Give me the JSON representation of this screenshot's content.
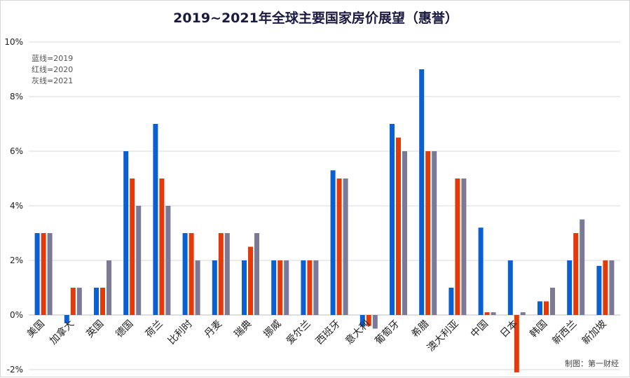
{
  "chart_data": {
    "type": "bar",
    "title": "2019~2021年全球主要国家房价展望（惠誉）",
    "categories": [
      "美国",
      "加拿大",
      "英国",
      "德国",
      "荷兰",
      "比利时",
      "丹麦",
      "瑞典",
      "挪威",
      "爱尔兰",
      "西班牙",
      "意大利",
      "葡萄牙",
      "希腊",
      "澳大利亚",
      "中国",
      "日本",
      "韩国",
      "新西兰",
      "新加坡"
    ],
    "series": [
      {
        "name": "2019",
        "color": "#0a5fd1",
        "values": [
          3,
          -0.3,
          1,
          6,
          7,
          3,
          2,
          2,
          2,
          2,
          5.3,
          -0.4,
          7,
          9,
          1,
          3.2,
          2,
          0.5,
          2,
          1.8
        ]
      },
      {
        "name": "2020",
        "color": "#e23a0a",
        "values": [
          3,
          1,
          1,
          5,
          5,
          3,
          3,
          2.5,
          2,
          2,
          5,
          -0.4,
          6.5,
          6,
          5,
          0.1,
          -2.1,
          0.5,
          3,
          2
        ]
      },
      {
        "name": "2021",
        "color": "#7a7a96",
        "values": [
          3,
          1,
          2,
          4,
          4,
          2,
          3,
          3,
          2,
          2,
          5,
          -0.5,
          6,
          6,
          5,
          0.1,
          0.1,
          1,
          3.5,
          2
        ]
      }
    ],
    "ylim": [
      -2,
      10
    ],
    "yticks": [
      -2,
      0,
      2,
      4,
      6,
      8,
      10
    ],
    "ytick_labels": [
      "-2%",
      "0%",
      "2%",
      "4%",
      "6%",
      "8%",
      "10%"
    ],
    "grid": true,
    "legend_note": [
      "蓝线=2019",
      "红线=2020",
      "灰线=2021"
    ],
    "legend_placement": "top-left",
    "credit": "制图：第一财经"
  }
}
